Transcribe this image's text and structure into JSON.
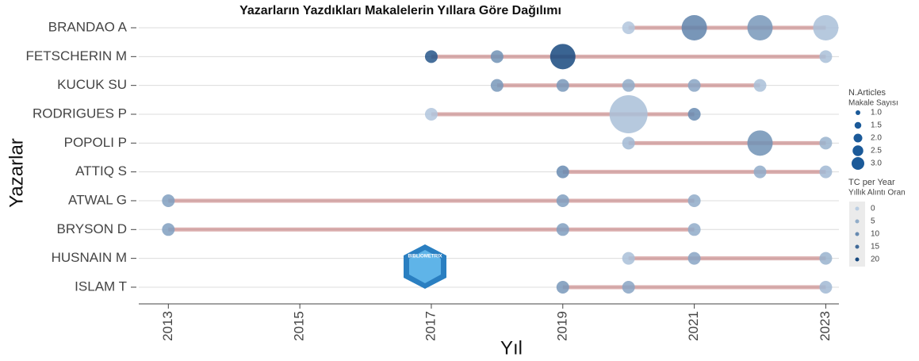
{
  "chart_data": {
    "type": "timeline",
    "title": "Yazarların Yazdıkları Makalelerin Yıllara Göre Dağılımı",
    "x_label": "Yıl",
    "y_label": "Yazarlar",
    "xlim": [
      2012.55,
      2023.2
    ],
    "xticks": [
      2013,
      2015,
      2017,
      2019,
      2021,
      2023
    ],
    "grid": true,
    "line_color": "rgba(190,110,110,0.55)",
    "color_low": "#b9cde2",
    "color_high": "#17497f",
    "series": [
      {
        "name": "BRANDAO A",
        "years": [
          2020,
          2021,
          2022,
          2023
        ],
        "articles": [
          1,
          2,
          2,
          2
        ],
        "tc_per_year": [
          1,
          11,
          8,
          2
        ]
      },
      {
        "name": "FETSCHERIN M",
        "years": [
          2017,
          2018,
          2019,
          2023
        ],
        "articles": [
          1,
          1,
          2,
          1
        ],
        "tc_per_year": [
          18,
          9,
          20,
          2
        ]
      },
      {
        "name": "KUCUK SU",
        "years": [
          2018,
          2019,
          2020,
          2021,
          2022
        ],
        "articles": [
          1,
          1,
          1,
          1,
          1
        ],
        "tc_per_year": [
          8,
          8,
          5,
          6,
          2
        ]
      },
      {
        "name": "RODRIGUES P",
        "years": [
          2017,
          2020,
          2021
        ],
        "articles": [
          1,
          3,
          1
        ],
        "tc_per_year": [
          1,
          2,
          10
        ]
      },
      {
        "name": "POPOLI P",
        "years": [
          2020,
          2022,
          2023
        ],
        "articles": [
          1,
          2,
          1
        ],
        "tc_per_year": [
          3,
          9,
          4
        ]
      },
      {
        "name": "ATTIQ S",
        "years": [
          2019,
          2022,
          2023
        ],
        "articles": [
          1,
          1,
          1
        ],
        "tc_per_year": [
          10,
          5,
          3
        ]
      },
      {
        "name": "ATWAL G",
        "years": [
          2013,
          2019,
          2021
        ],
        "articles": [
          1,
          1,
          1
        ],
        "tc_per_year": [
          7,
          7,
          5
        ]
      },
      {
        "name": "BRYSON D",
        "years": [
          2013,
          2019,
          2021
        ],
        "articles": [
          1,
          1,
          1
        ],
        "tc_per_year": [
          7,
          7,
          5
        ]
      },
      {
        "name": "HUSNAIN M",
        "years": [
          2020,
          2021,
          2023
        ],
        "articles": [
          1,
          1,
          1
        ],
        "tc_per_year": [
          2,
          6,
          4
        ]
      },
      {
        "name": "ISLAM T",
        "years": [
          2019,
          2020,
          2023
        ],
        "articles": [
          1,
          1,
          1
        ],
        "tc_per_year": [
          8,
          6,
          3
        ]
      }
    ],
    "size_legend": {
      "title": "N.Articles",
      "subtitle": "Makale Sayısı",
      "values": [
        1.0,
        1.5,
        2.0,
        2.5,
        3.0
      ],
      "labels": [
        "1.0",
        "1.5",
        "2.0",
        "2.5",
        "3.0"
      ]
    },
    "color_legend": {
      "title": "TC per Year",
      "subtitle": "Yıllık Alıntı Oran",
      "values": [
        0,
        5,
        10,
        15,
        20
      ]
    },
    "watermark": "BIBLIOMETRIX"
  }
}
